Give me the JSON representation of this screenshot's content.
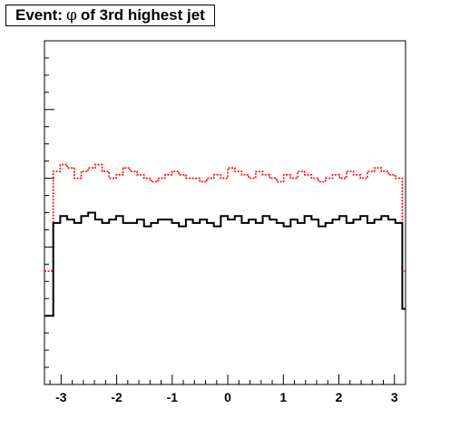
{
  "title": {
    "prefix": "Event:",
    "symbol": "φ",
    "suffix": "of 3rd highest jet"
  },
  "chart_data": {
    "type": "histogram",
    "title": "Event: φ of 3rd highest jet",
    "xlabel": "",
    "ylabel": "",
    "xlim": [
      -3.3,
      3.2
    ],
    "ylim": [
      0,
      100
    ],
    "x_ticks": [
      -3,
      -2,
      -1,
      0,
      1,
      2,
      3
    ],
    "x_tick_labels": [
      "-3",
      "-2",
      "-1",
      "0",
      "1",
      "2",
      "3"
    ],
    "bins": 50,
    "bin_range": [
      -3.1416,
      3.1416
    ],
    "grid": false,
    "legend": "none",
    "series": [
      {
        "color": "#ff0000",
        "style": "dotted",
        "values": [
          62,
          64,
          63,
          60,
          62,
          63,
          64,
          62,
          60,
          61,
          63,
          62,
          61,
          60,
          59,
          60,
          61,
          62,
          61,
          60,
          60,
          59,
          60,
          61,
          60,
          63,
          62,
          61,
          60,
          62,
          61,
          60,
          59,
          61,
          60,
          62,
          61,
          60,
          59,
          60,
          61,
          60,
          62,
          61,
          60,
          62,
          63,
          62,
          61,
          60
        ],
        "edge_values": [
          33,
          33
        ]
      },
      {
        "color": "#000000",
        "style": "solid",
        "values": [
          47,
          49,
          48,
          47,
          49,
          50,
          48,
          47,
          48,
          49,
          47,
          47,
          48,
          46,
          47,
          48,
          48,
          47,
          46,
          48,
          47,
          48,
          47,
          46,
          49,
          48,
          49,
          47,
          48,
          47,
          49,
          48,
          47,
          46,
          48,
          47,
          49,
          48,
          46,
          47,
          48,
          49,
          47,
          48,
          49,
          47,
          48,
          49,
          48,
          47
        ],
        "edge_values": [
          20,
          22
        ]
      }
    ]
  }
}
